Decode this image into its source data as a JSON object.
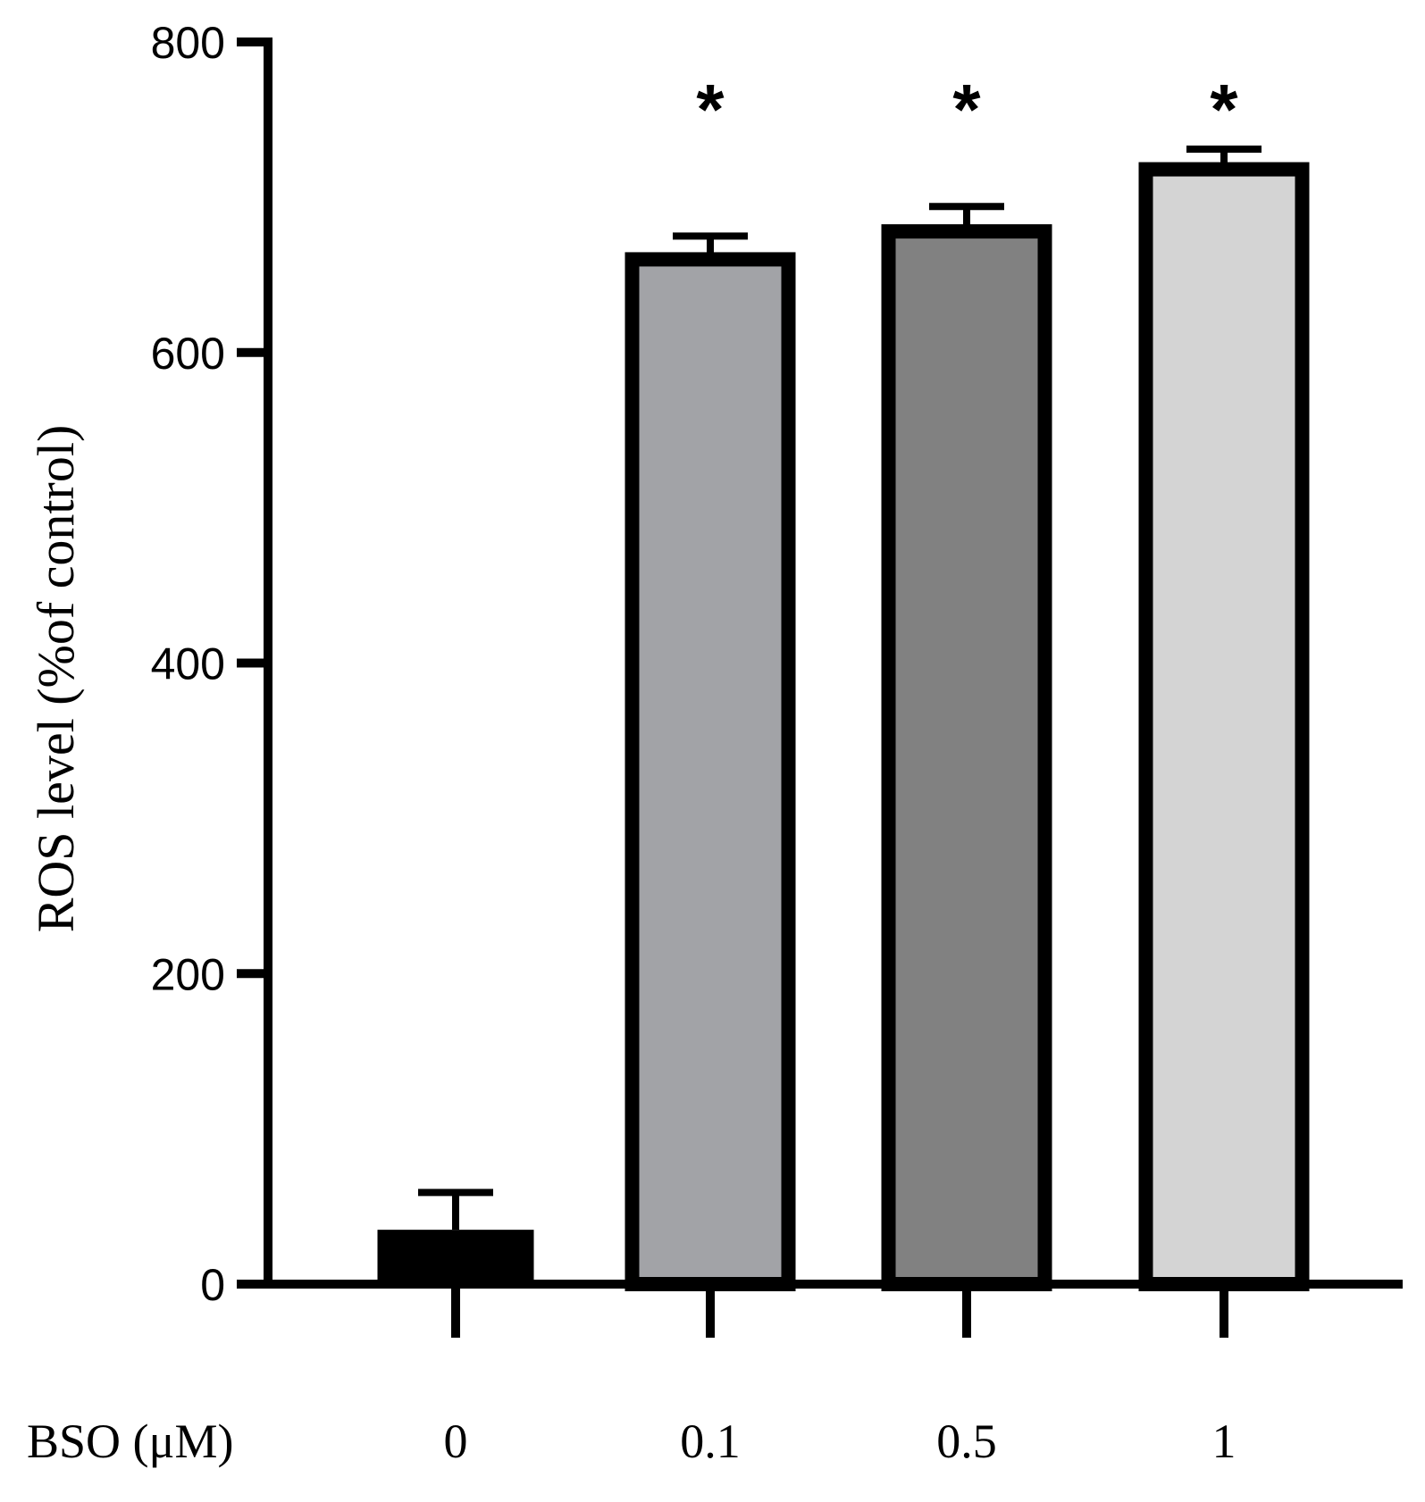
{
  "chart_data": {
    "type": "bar",
    "title": "",
    "ylabel": "ROS level (%of control)",
    "xlabel": "BSO (μM)",
    "categories": [
      "0",
      "0.1",
      "0.5",
      "1"
    ],
    "values": [
      35,
      660,
      678,
      718
    ],
    "errors": [
      24,
      15,
      16,
      13
    ],
    "significance": [
      "",
      "*",
      "*",
      "*"
    ],
    "ylim": [
      0,
      800
    ],
    "yticks": [
      "0",
      "200",
      "400",
      "600",
      "800"
    ],
    "grid": false,
    "bar_colors": [
      "#000000",
      "#a2a3a7",
      "#818181",
      "#d4d4d4"
    ],
    "edge_color": "#000000"
  }
}
